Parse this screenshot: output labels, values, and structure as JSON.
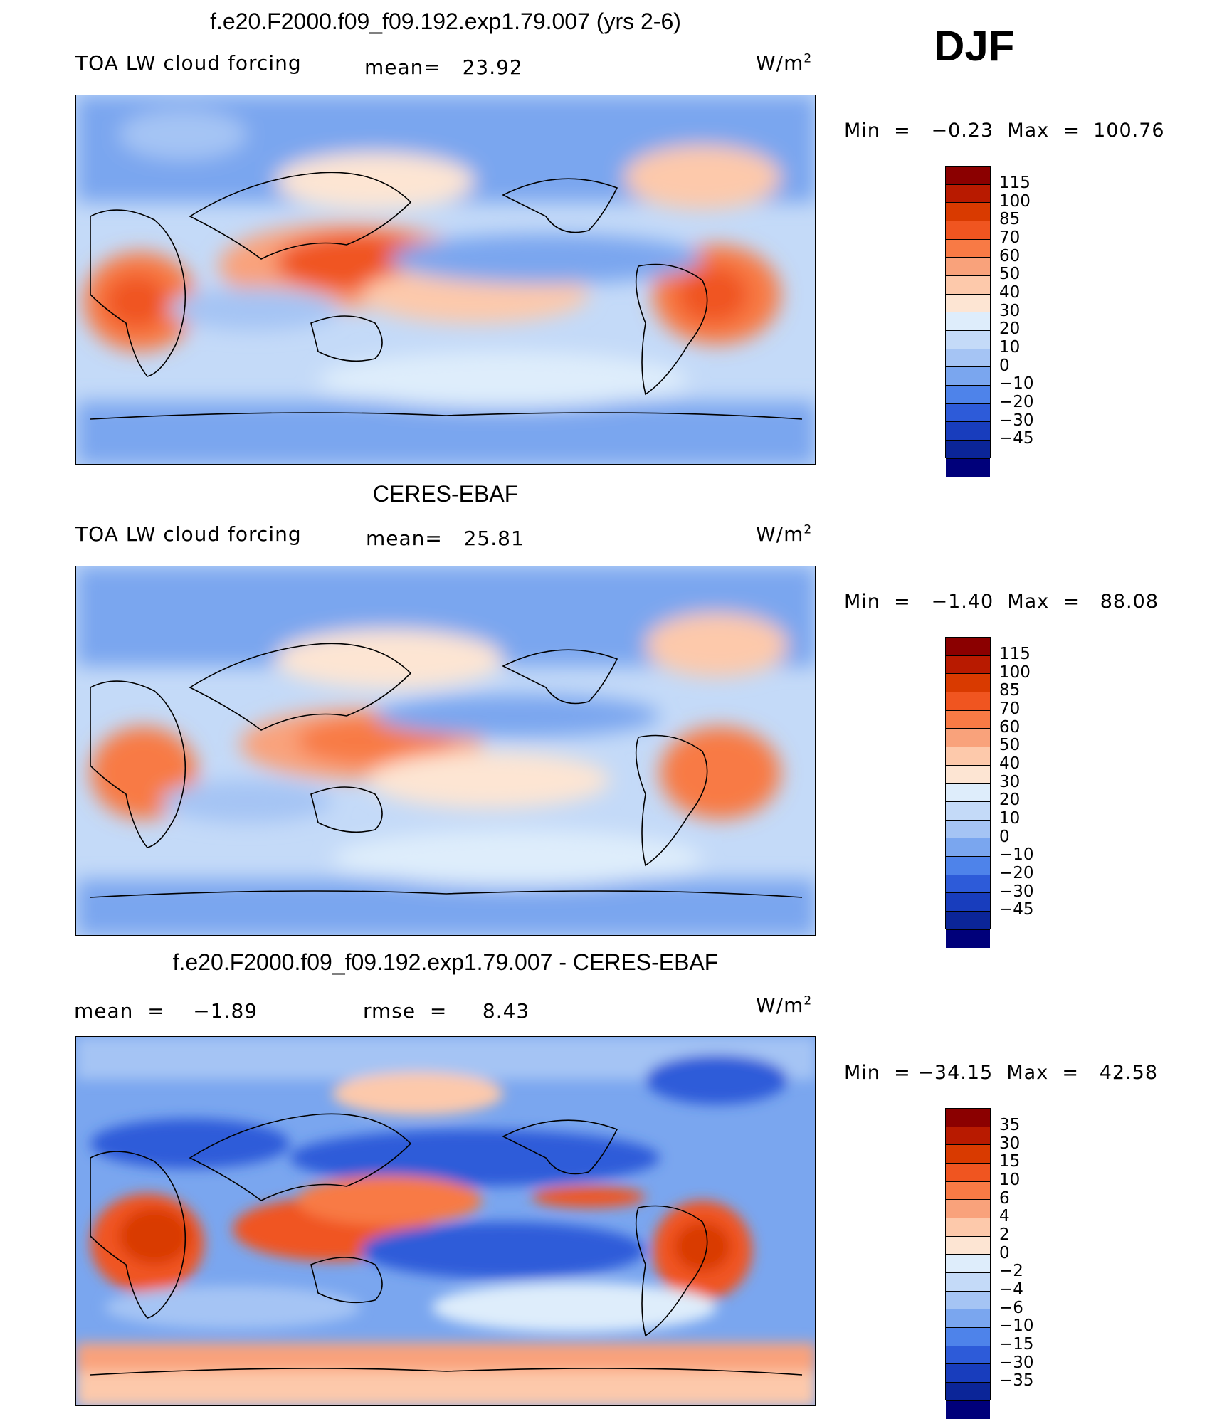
{
  "season": "DJF",
  "panels": [
    {
      "title": "f.e20.F2000.f09_f09.192.exp1.79.007 (yrs 2-6)",
      "variable": "TOA LW cloud forcing",
      "stat1": "mean=   23.92",
      "stat2": "",
      "units": "W/m",
      "units_exp": "2",
      "minmax": "Min  =   −0.23  Max  =  100.76",
      "palette": [
        "#8b0000",
        "#b81a00",
        "#d93a00",
        "#f05520",
        "#f87a45",
        "#f9a27b",
        "#fdc9ab",
        "#fde5d3",
        "#deedfb",
        "#c4daf8",
        "#a5c4f4",
        "#7aa6ef",
        "#4e83ea",
        "#2d5bd9",
        "#183dbd",
        "#0b2598",
        "#00007a"
      ],
      "labels": [
        "115",
        "100",
        "85",
        "70",
        "60",
        "50",
        "40",
        "30",
        "20",
        "10",
        "0",
        "−10",
        "−20",
        "−30",
        "−45"
      ]
    },
    {
      "title": "CERES-EBAF",
      "variable": "TOA LW cloud forcing",
      "stat1": "mean=   25.81",
      "stat2": "",
      "units": "W/m",
      "units_exp": "2",
      "minmax": "Min  =   −1.40  Max  =   88.08",
      "palette": [
        "#8b0000",
        "#b81a00",
        "#d93a00",
        "#f05520",
        "#f87a45",
        "#f9a27b",
        "#fdc9ab",
        "#fde5d3",
        "#deedfb",
        "#c4daf8",
        "#a5c4f4",
        "#7aa6ef",
        "#4e83ea",
        "#2d5bd9",
        "#183dbd",
        "#0b2598",
        "#00007a"
      ],
      "labels": [
        "115",
        "100",
        "85",
        "70",
        "60",
        "50",
        "40",
        "30",
        "20",
        "10",
        "0",
        "−10",
        "−20",
        "−30",
        "−45"
      ]
    },
    {
      "title": "f.e20.F2000.f09_f09.192.exp1.79.007 - CERES-EBAF",
      "variable": "",
      "stat1": "mean  =    −1.89",
      "stat2": "rmse  =     8.43",
      "units": "W/m",
      "units_exp": "2",
      "minmax": "Min  = −34.15  Max  =   42.58",
      "palette": [
        "#8b0000",
        "#b81a00",
        "#d93a00",
        "#f05520",
        "#f87a45",
        "#f9a27b",
        "#fdc9ab",
        "#fde5d3",
        "#deedfb",
        "#c4daf8",
        "#a5c4f4",
        "#7aa6ef",
        "#4e83ea",
        "#2d5bd9",
        "#183dbd",
        "#0b2598",
        "#00007a"
      ],
      "labels": [
        "35",
        "30",
        "15",
        "10",
        "6",
        "4",
        "2",
        "0",
        "−2",
        "−4",
        "−6",
        "−10",
        "−15",
        "−30",
        "−35"
      ]
    }
  ]
}
